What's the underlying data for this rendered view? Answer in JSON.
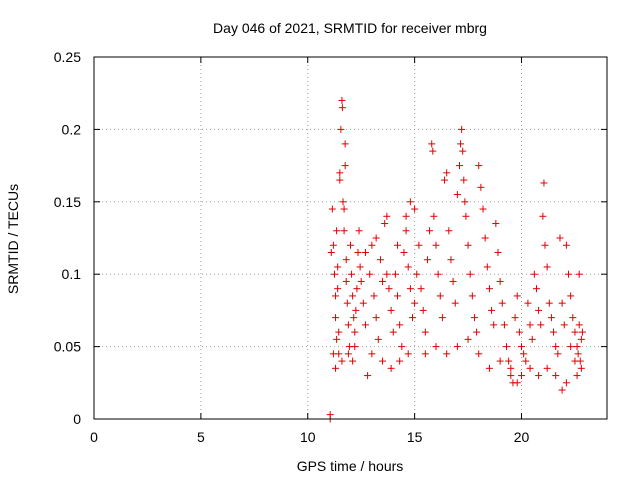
{
  "chart_data": {
    "type": "scatter",
    "title": "Day 046 of 2021, SRMTID for receiver mbrg",
    "xlabel": "GPS time / hours",
    "ylabel": "SRMTID / TECUs",
    "xlim": [
      0,
      24
    ],
    "ylim": [
      0,
      0.25
    ],
    "x_ticks": [
      0,
      5,
      10,
      15,
      20
    ],
    "x_tick_labels": [
      "0",
      "5",
      "10",
      "15",
      "20"
    ],
    "y_ticks": [
      0,
      0.05,
      0.1,
      0.15,
      0.2,
      0.25
    ],
    "y_tick_labels": [
      "0",
      "0.05",
      "0.1",
      "0.15",
      "0.2",
      "0.25"
    ],
    "grid": true,
    "marker": "plus",
    "color": "#e00000",
    "series": [
      {
        "name": "SRMTID",
        "points": [
          [
            11.05,
            0.0
          ],
          [
            11.05,
            0.003
          ],
          [
            11.1,
            0.115
          ],
          [
            11.15,
            0.145
          ],
          [
            11.2,
            0.12
          ],
          [
            11.25,
            0.1
          ],
          [
            11.3,
            0.085
          ],
          [
            11.3,
            0.07
          ],
          [
            11.35,
            0.055
          ],
          [
            11.35,
            0.13
          ],
          [
            11.4,
            0.105
          ],
          [
            11.4,
            0.09
          ],
          [
            11.45,
            0.06
          ],
          [
            11.45,
            0.045
          ],
          [
            11.5,
            0.17
          ],
          [
            11.5,
            0.165
          ],
          [
            11.55,
            0.2
          ],
          [
            11.6,
            0.22
          ],
          [
            11.62,
            0.215
          ],
          [
            11.65,
            0.15
          ],
          [
            11.7,
            0.145
          ],
          [
            11.7,
            0.13
          ],
          [
            11.75,
            0.175
          ],
          [
            11.75,
            0.19
          ],
          [
            11.8,
            0.11
          ],
          [
            11.8,
            0.095
          ],
          [
            11.85,
            0.08
          ],
          [
            11.9,
            0.065
          ],
          [
            11.95,
            0.05
          ],
          [
            12.0,
            0.12
          ],
          [
            12.05,
            0.1
          ],
          [
            12.1,
            0.085
          ],
          [
            12.15,
            0.07
          ],
          [
            12.2,
            0.06
          ],
          [
            12.25,
            0.075
          ],
          [
            12.3,
            0.09
          ],
          [
            12.35,
            0.115
          ],
          [
            12.4,
            0.13
          ],
          [
            12.45,
            0.105
          ],
          [
            12.5,
            0.095
          ],
          [
            11.2,
            0.045
          ],
          [
            11.3,
            0.035
          ],
          [
            11.6,
            0.04
          ],
          [
            11.9,
            0.045
          ],
          [
            12.1,
            0.04
          ],
          [
            12.2,
            0.05
          ],
          [
            12.6,
            0.08
          ],
          [
            12.7,
            0.065
          ],
          [
            12.8,
            0.03
          ],
          [
            12.9,
            0.1
          ],
          [
            13.0,
            0.12
          ],
          [
            13.1,
            0.085
          ],
          [
            13.2,
            0.07
          ],
          [
            13.3,
            0.055
          ],
          [
            13.4,
            0.11
          ],
          [
            13.5,
            0.095
          ],
          [
            13.6,
            0.135
          ],
          [
            13.7,
            0.14
          ],
          [
            13.8,
            0.09
          ],
          [
            13.9,
            0.075
          ],
          [
            14.0,
            0.06
          ],
          [
            14.1,
            0.1
          ],
          [
            14.2,
            0.085
          ],
          [
            14.3,
            0.065
          ],
          [
            14.4,
            0.05
          ],
          [
            14.5,
            0.115
          ],
          [
            14.6,
            0.13
          ],
          [
            14.7,
            0.105
          ],
          [
            14.8,
            0.09
          ],
          [
            14.9,
            0.07
          ],
          [
            15.0,
            0.08
          ],
          [
            13.0,
            0.045
          ],
          [
            13.5,
            0.04
          ],
          [
            13.9,
            0.035
          ],
          [
            14.3,
            0.04
          ],
          [
            14.7,
            0.045
          ],
          [
            12.7,
            0.115
          ],
          [
            13.2,
            0.125
          ],
          [
            13.7,
            0.1
          ],
          [
            14.2,
            0.12
          ],
          [
            14.6,
            0.14
          ],
          [
            14.8,
            0.15
          ],
          [
            15.0,
            0.145
          ],
          [
            15.1,
            0.1
          ],
          [
            15.2,
            0.12
          ],
          [
            15.3,
            0.09
          ],
          [
            15.4,
            0.075
          ],
          [
            15.5,
            0.06
          ],
          [
            15.6,
            0.11
          ],
          [
            15.7,
            0.13
          ],
          [
            15.8,
            0.19
          ],
          [
            15.85,
            0.185
          ],
          [
            15.9,
            0.14
          ],
          [
            16.0,
            0.12
          ],
          [
            16.1,
            0.1
          ],
          [
            16.2,
            0.085
          ],
          [
            16.3,
            0.07
          ],
          [
            16.4,
            0.165
          ],
          [
            16.5,
            0.17
          ],
          [
            16.6,
            0.13
          ],
          [
            16.7,
            0.11
          ],
          [
            16.8,
            0.095
          ],
          [
            16.9,
            0.08
          ],
          [
            17.0,
            0.155
          ],
          [
            17.1,
            0.175
          ],
          [
            17.15,
            0.19
          ],
          [
            17.2,
            0.2
          ],
          [
            17.25,
            0.185
          ],
          [
            17.3,
            0.165
          ],
          [
            17.35,
            0.15
          ],
          [
            17.4,
            0.14
          ],
          [
            17.5,
            0.12
          ],
          [
            17.6,
            0.1
          ],
          [
            17.7,
            0.085
          ],
          [
            17.8,
            0.07
          ],
          [
            17.9,
            0.06
          ],
          [
            18.0,
            0.175
          ],
          [
            18.1,
            0.16
          ],
          [
            18.2,
            0.145
          ],
          [
            18.3,
            0.125
          ],
          [
            18.4,
            0.105
          ],
          [
            18.5,
            0.09
          ],
          [
            18.6,
            0.075
          ],
          [
            18.7,
            0.065
          ],
          [
            18.8,
            0.135
          ],
          [
            18.9,
            0.115
          ],
          [
            19.0,
            0.095
          ],
          [
            19.1,
            0.08
          ],
          [
            19.2,
            0.065
          ],
          [
            19.3,
            0.05
          ],
          [
            19.4,
            0.04
          ],
          [
            19.5,
            0.035
          ],
          [
            16.0,
            0.05
          ],
          [
            16.5,
            0.045
          ],
          [
            17.0,
            0.05
          ],
          [
            17.5,
            0.055
          ],
          [
            18.0,
            0.045
          ],
          [
            18.5,
            0.035
          ],
          [
            15.5,
            0.045
          ],
          [
            19.0,
            0.04
          ],
          [
            19.5,
            0.03
          ],
          [
            19.6,
            0.025
          ],
          [
            19.7,
            0.07
          ],
          [
            19.8,
            0.085
          ],
          [
            19.9,
            0.06
          ],
          [
            20.0,
            0.05
          ],
          [
            20.1,
            0.045
          ],
          [
            20.2,
            0.04
          ],
          [
            20.3,
            0.08
          ],
          [
            20.4,
            0.065
          ],
          [
            20.5,
            0.055
          ],
          [
            20.6,
            0.1
          ],
          [
            20.7,
            0.09
          ],
          [
            20.8,
            0.075
          ],
          [
            20.9,
            0.065
          ],
          [
            21.0,
            0.14
          ],
          [
            21.05,
            0.163
          ],
          [
            21.1,
            0.12
          ],
          [
            21.2,
            0.105
          ],
          [
            21.3,
            0.08
          ],
          [
            21.4,
            0.07
          ],
          [
            21.5,
            0.06
          ],
          [
            21.6,
            0.05
          ],
          [
            21.7,
            0.045
          ],
          [
            21.8,
            0.125
          ],
          [
            21.9,
            0.08
          ],
          [
            22.0,
            0.065
          ],
          [
            19.8,
            0.025
          ],
          [
            20.0,
            0.03
          ],
          [
            20.4,
            0.035
          ],
          [
            20.8,
            0.03
          ],
          [
            21.2,
            0.035
          ],
          [
            21.6,
            0.03
          ],
          [
            21.9,
            0.02
          ],
          [
            22.1,
            0.025
          ],
          [
            22.1,
            0.12
          ],
          [
            22.2,
            0.1
          ],
          [
            22.3,
            0.085
          ],
          [
            22.4,
            0.07
          ],
          [
            22.5,
            0.06
          ],
          [
            22.6,
            0.05
          ],
          [
            22.65,
            0.045
          ],
          [
            22.7,
            0.065
          ],
          [
            22.75,
            0.04
          ],
          [
            22.8,
            0.035
          ],
          [
            22.7,
            0.1
          ],
          [
            22.8,
            0.055
          ],
          [
            22.5,
            0.04
          ],
          [
            22.3,
            0.05
          ],
          [
            22.6,
            0.03
          ],
          [
            22.85,
            0.06
          ]
        ]
      }
    ]
  }
}
